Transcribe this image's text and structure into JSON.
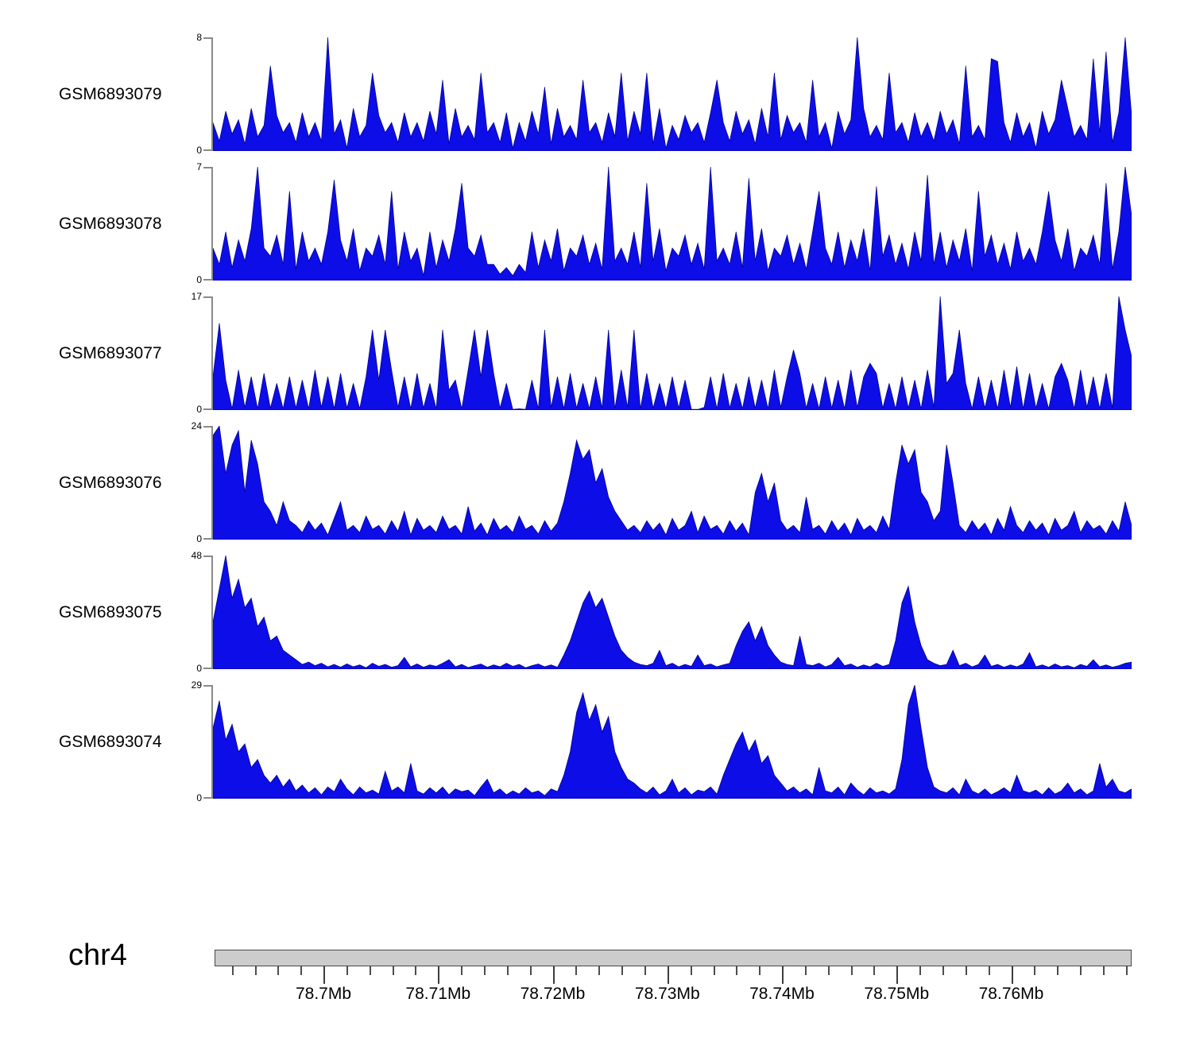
{
  "chart_data": {
    "type": "area",
    "description": "Genome browser read-coverage tracks, filled blue area plots over a chr4 region",
    "colors": {
      "area_fill": "#0d0de8",
      "area_stroke": "#000085",
      "y_axis": "#8a8a8a",
      "ideogram_fill": "#cccccc",
      "ideogram_border": "#474747",
      "ruler_tick": "#3d3d3d",
      "text": "#000000"
    },
    "tracks": [
      {
        "name": "GSM6893079",
        "ymin": 0,
        "ymax": 8,
        "values": [
          2,
          0.7,
          2.8,
          1.2,
          2.2,
          0.5,
          3,
          1,
          1.8,
          6,
          2.5,
          1.3,
          2,
          0.6,
          2.7,
          1,
          2,
          0.7,
          8,
          1.2,
          2.2,
          0.2,
          3,
          1,
          1.8,
          5.5,
          2.5,
          1.3,
          2,
          0.6,
          2.7,
          1,
          2,
          0.7,
          2.8,
          1.2,
          5,
          0.5,
          3,
          1,
          1.8,
          0.8,
          5.5,
          1.3,
          2,
          0.6,
          2.7,
          0.2,
          2,
          0.7,
          2.8,
          1.2,
          4.5,
          0.5,
          3,
          1,
          1.8,
          0.8,
          5,
          1.3,
          2,
          0.6,
          2.7,
          1,
          5.5,
          0.7,
          2.8,
          1.2,
          5.5,
          0.5,
          3,
          0.2,
          1.8,
          0.8,
          2.5,
          1.3,
          2,
          0.6,
          2.7,
          5,
          2,
          0.7,
          2.8,
          1.2,
          2.2,
          0.5,
          3,
          1,
          5.5,
          0.8,
          2.5,
          1.3,
          2,
          0.6,
          5,
          1,
          2,
          0.2,
          2.8,
          1.2,
          2.2,
          8,
          3,
          1,
          1.8,
          0.8,
          5.5,
          1.3,
          2,
          0.6,
          2.7,
          1,
          2,
          0.7,
          2.8,
          1.2,
          2.2,
          0.5,
          6,
          1,
          1.8,
          0.8,
          6.5,
          6.3,
          2,
          0.6,
          2.7,
          1,
          2,
          0.2,
          2.8,
          1.2,
          2.2,
          5,
          3,
          1,
          1.8,
          0.8,
          6.5,
          1.3,
          7,
          0.6,
          2.7,
          8,
          2.5
        ]
      },
      {
        "name": "GSM6893078",
        "ymin": 0,
        "ymax": 7,
        "values": [
          2,
          1,
          3,
          0.8,
          2.5,
          1.2,
          3.2,
          7,
          2,
          1.5,
          2.8,
          1,
          5.5,
          0.7,
          3,
          1.2,
          2,
          1,
          3,
          6.2,
          2.5,
          1.2,
          3.2,
          0.6,
          2,
          1.5,
          2.8,
          1,
          5.5,
          0.7,
          3,
          1.2,
          2,
          0.3,
          3,
          0.8,
          2.5,
          1.2,
          3.2,
          6,
          2,
          1.5,
          2.8,
          1,
          1,
          0.4,
          0.8,
          0.3,
          1,
          0.5,
          3,
          0.8,
          2.5,
          1.2,
          3.2,
          0.6,
          2,
          1.5,
          2.8,
          1,
          2.3,
          0.7,
          7,
          1.2,
          2,
          1,
          3,
          0.8,
          6,
          1.2,
          3.2,
          0.6,
          2,
          1.5,
          2.8,
          1,
          2.3,
          0.7,
          7,
          1.2,
          2,
          1,
          3,
          0.8,
          6.3,
          1.2,
          3.2,
          0.6,
          2,
          1.5,
          2.8,
          1,
          2.3,
          0.7,
          3,
          5.5,
          2,
          1,
          3,
          0.8,
          2.5,
          1.2,
          3.2,
          0.6,
          5.8,
          1.5,
          2.8,
          1,
          2.3,
          0.7,
          3,
          1.2,
          6.5,
          1,
          3,
          0.8,
          2.5,
          1.2,
          3.2,
          0.6,
          5.5,
          1.5,
          2.8,
          1,
          2.3,
          0.7,
          3,
          1.2,
          2,
          1,
          3,
          5.5,
          2.5,
          1.2,
          3.2,
          0.6,
          2,
          1.5,
          2.8,
          1,
          6,
          0.7,
          3,
          7,
          4
        ]
      },
      {
        "name": "GSM6893077",
        "ymin": 0,
        "ymax": 17,
        "values": [
          5,
          13,
          4.5,
          0.2,
          6,
          0.4,
          5,
          0.2,
          5.5,
          0.3,
          4,
          0.2,
          5,
          0.3,
          4.5,
          0.2,
          6,
          0.4,
          5,
          0.2,
          5.5,
          0.3,
          4,
          0.2,
          5,
          12,
          4.5,
          12,
          6,
          0.4,
          5,
          0.2,
          5.5,
          0.3,
          4,
          0.2,
          12,
          3,
          4.5,
          0.2,
          6,
          12,
          5,
          12,
          5.5,
          0.3,
          4,
          0.1,
          0.2,
          0.1,
          4.5,
          0.2,
          12,
          0.4,
          5,
          0.2,
          5.5,
          0.3,
          4,
          0.2,
          5,
          0.3,
          12,
          0.2,
          6,
          0.4,
          12,
          0.2,
          5.5,
          0.3,
          4,
          0.2,
          5,
          0.3,
          4.5,
          0.1,
          0.1,
          0.4,
          5,
          0.2,
          5.5,
          0.3,
          4,
          0.2,
          5,
          0.3,
          4.5,
          0.2,
          6,
          0.4,
          5,
          9,
          5.5,
          0.3,
          4,
          0.2,
          5,
          0.3,
          4.5,
          0.2,
          6,
          0.4,
          5,
          7,
          5.5,
          0.3,
          4,
          0.2,
          5,
          0.3,
          4.5,
          0.2,
          6,
          0.4,
          17,
          4,
          5.5,
          12,
          4,
          0.2,
          5,
          0.3,
          4.5,
          0.2,
          6,
          0.4,
          6.5,
          0.2,
          5.5,
          0.3,
          4,
          0.2,
          5,
          7,
          4.5,
          0.2,
          6,
          0.4,
          5,
          0.2,
          5.5,
          0.3,
          17,
          12,
          8
        ]
      },
      {
        "name": "GSM6893076",
        "ymin": 0,
        "ymax": 24,
        "values": [
          22,
          24,
          14,
          20,
          23,
          10,
          21,
          16,
          8,
          6,
          3,
          8,
          4,
          3,
          1.5,
          4,
          2,
          3.5,
          1,
          4.5,
          8,
          2,
          3,
          1.5,
          5,
          2.2,
          3,
          1.2,
          4,
          1.8,
          6,
          1,
          4.5,
          2,
          3,
          1.5,
          5,
          2.2,
          3,
          1.2,
          7,
          1.8,
          3.5,
          1,
          4.5,
          2,
          3,
          1.5,
          5,
          2.2,
          3,
          1.2,
          4,
          1.8,
          3.5,
          8,
          14,
          21,
          17,
          19,
          12,
          15,
          9,
          6,
          4,
          2,
          3,
          1.5,
          4,
          2,
          3.5,
          1,
          4.5,
          2,
          3,
          6,
          1.5,
          5,
          2.2,
          3,
          1.2,
          4,
          1.8,
          3.5,
          1,
          10,
          14,
          8,
          12,
          4,
          2,
          3,
          1.5,
          9,
          2.2,
          3,
          1.2,
          4,
          1.8,
          3.5,
          1,
          4.5,
          2,
          3,
          1.5,
          5,
          2.2,
          12,
          20,
          16,
          19,
          10,
          8,
          4,
          6,
          20,
          12,
          3,
          1.5,
          4,
          2,
          3.5,
          1,
          4.5,
          2,
          7,
          3,
          1.5,
          4,
          2,
          3.5,
          1,
          4.5,
          2,
          3,
          6,
          1.5,
          4,
          2.2,
          3,
          1.2,
          4,
          1.8,
          8,
          3
        ]
      },
      {
        "name": "GSM6893075",
        "ymin": 0,
        "ymax": 48,
        "values": [
          20,
          34,
          48,
          30,
          38,
          26,
          30,
          18,
          22,
          12,
          14,
          8,
          6,
          4,
          2,
          3,
          1.5,
          2.5,
          1,
          2,
          0.8,
          2.2,
          1,
          1.8,
          0.6,
          2.5,
          1.2,
          2,
          0.8,
          1.5,
          5,
          1,
          2.2,
          0.8,
          1.8,
          1.2,
          2.5,
          4,
          1,
          2,
          0.7,
          1.5,
          2.2,
          0.8,
          1.8,
          1,
          2.5,
          1.2,
          2,
          0.6,
          1.5,
          2.2,
          1,
          1.8,
          0.8,
          6,
          12,
          20,
          28,
          33,
          26,
          30,
          22,
          14,
          8,
          5,
          3,
          2,
          1.5,
          2.5,
          8,
          1.5,
          2.5,
          1,
          2,
          1.2,
          6,
          1.5,
          2.2,
          1,
          1.8,
          2.5,
          10,
          16,
          20,
          12,
          18,
          10,
          6,
          3,
          2,
          1.5,
          14,
          2,
          1.5,
          2.5,
          1,
          2,
          5,
          1.5,
          2.2,
          0.8,
          1.8,
          1,
          2.5,
          1.2,
          2,
          12,
          28,
          35,
          20,
          10,
          4,
          2.5,
          1.5,
          2,
          8,
          1.5,
          2.5,
          1,
          2,
          6,
          1.2,
          2,
          0.8,
          1.8,
          1,
          2.2,
          7,
          1,
          1.8,
          0.8,
          2.2,
          1,
          1.5,
          0.6,
          2,
          1.2,
          4,
          1,
          1.8,
          0.8,
          1.5,
          2.5,
          3
        ]
      },
      {
        "name": "GSM6893074",
        "ymin": 0,
        "ymax": 29,
        "values": [
          18,
          25,
          15,
          19,
          12,
          14,
          8,
          10,
          6,
          4,
          6,
          3,
          5,
          2,
          3.5,
          1.5,
          2.8,
          1,
          3,
          1.8,
          5,
          2.5,
          1,
          3,
          1.5,
          2.2,
          1.2,
          7,
          2,
          3,
          1.5,
          9,
          2,
          1.2,
          2.8,
          1.5,
          3,
          1,
          2.5,
          1.8,
          2.2,
          0.8,
          3,
          5,
          1.5,
          2.5,
          1,
          2,
          1.2,
          2.8,
          1.5,
          2,
          0.8,
          2.5,
          1.8,
          6,
          12,
          22,
          27,
          20,
          24,
          17,
          21,
          12,
          8,
          5,
          4,
          2.5,
          1.5,
          3,
          1,
          2,
          5,
          1.5,
          2.8,
          1,
          2.2,
          1.8,
          3,
          1.2,
          6,
          10,
          14,
          17,
          12,
          15,
          9,
          11,
          6,
          4,
          2,
          3,
          1.5,
          2.5,
          1,
          8,
          2,
          1.5,
          3,
          1,
          4,
          2.2,
          1,
          2.8,
          1.5,
          2,
          1.2,
          2.5,
          10,
          24,
          29,
          18,
          8,
          3,
          2,
          1.5,
          2.8,
          1,
          5,
          2,
          1.2,
          2.5,
          1,
          1.8,
          2.8,
          1.5,
          6,
          2,
          1.5,
          2.2,
          1,
          2.8,
          1.2,
          2,
          4,
          1.5,
          2.5,
          1,
          2,
          9,
          3,
          5,
          2,
          1.5,
          2.5
        ]
      }
    ],
    "x_axis": {
      "chromosome": "chr4",
      "units": "Mb",
      "start_mb": 78.6905,
      "end_mb": 78.7705,
      "minor_start_mb": 78.692,
      "minor_step_mb": 0.002,
      "major_ticks": [
        {
          "pos_mb": 78.7,
          "label": "78.7Mb"
        },
        {
          "pos_mb": 78.71,
          "label": "78.71Mb"
        },
        {
          "pos_mb": 78.72,
          "label": "78.72Mb"
        },
        {
          "pos_mb": 78.73,
          "label": "78.73Mb"
        },
        {
          "pos_mb": 78.74,
          "label": "78.74Mb"
        },
        {
          "pos_mb": 78.75,
          "label": "78.75Mb"
        },
        {
          "pos_mb": 78.76,
          "label": "78.76Mb"
        }
      ]
    }
  }
}
